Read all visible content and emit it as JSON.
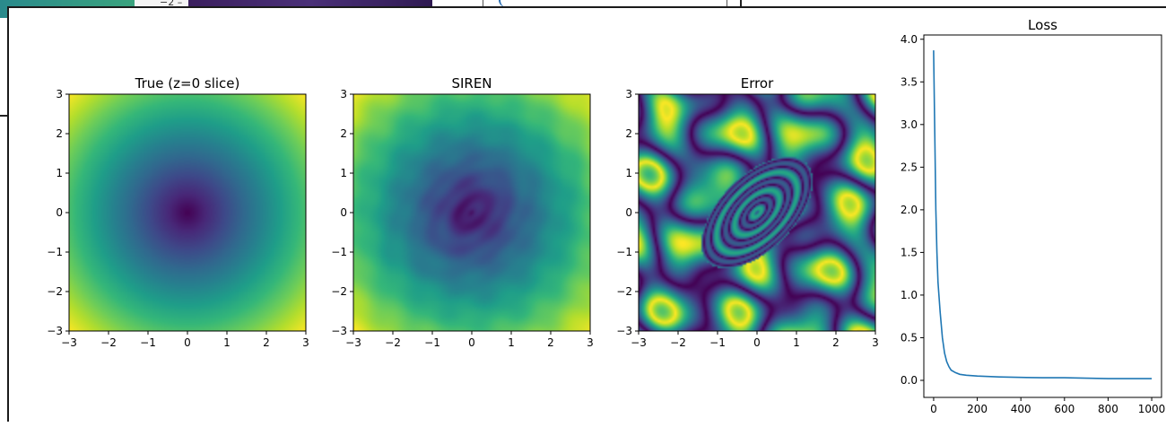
{
  "background": {
    "fragment_text": "−2 –"
  },
  "figure": {
    "panels": [
      {
        "title": "True (z=0 slice)",
        "field": "radial"
      },
      {
        "title": "SIREN",
        "field": "siren"
      },
      {
        "title": "Error",
        "field": "error"
      }
    ],
    "image_axis_ticks": [
      "−3",
      "−2",
      "−1",
      "0",
      "1",
      "2",
      "3"
    ]
  },
  "chart_data": [
    {
      "type": "heatmap",
      "title": "True (z=0 slice)",
      "xlabel": "",
      "ylabel": "",
      "xlim": [
        -3,
        3
      ],
      "ylim": [
        -3,
        3
      ],
      "xticks": [
        -3,
        -2,
        -1,
        0,
        1,
        2,
        3
      ],
      "yticks": [
        -3,
        -2,
        -1,
        0,
        1,
        2,
        3
      ],
      "colormap": "viridis",
      "description_of_values": "radial distance from origin, minimum (dark purple) at (0,0), maximum (yellow) at corners"
    },
    {
      "type": "heatmap",
      "title": "SIREN",
      "xlabel": "",
      "ylabel": "",
      "xlim": [
        -3,
        3
      ],
      "ylim": [
        -3,
        3
      ],
      "xticks": [
        -3,
        -2,
        -1,
        0,
        1,
        2,
        3
      ],
      "yticks": [
        -3,
        -2,
        -1,
        0,
        1,
        2,
        3
      ],
      "colormap": "viridis"
    },
    {
      "type": "heatmap",
      "title": "Error",
      "xlabel": "",
      "ylabel": "",
      "xlim": [
        -3,
        3
      ],
      "ylim": [
        -3,
        3
      ],
      "xticks": [
        -3,
        -2,
        -1,
        0,
        1,
        2,
        3
      ],
      "yticks": [
        -3,
        -2,
        -1,
        0,
        1,
        2,
        3
      ],
      "colormap": "viridis"
    },
    {
      "type": "line",
      "title": "Loss",
      "xlabel": "",
      "ylabel": "",
      "xlim": [
        -45,
        1045
      ],
      "ylim": [
        -0.2,
        4.05
      ],
      "xticks": [
        0,
        200,
        400,
        600,
        800,
        1000
      ],
      "yticks": [
        0.0,
        0.5,
        1.0,
        1.5,
        2.0,
        2.5,
        3.0,
        3.5,
        4.0
      ],
      "ytick_labels": [
        "0.0",
        "0.5",
        "1.0",
        "1.5",
        "2.0",
        "2.5",
        "3.0",
        "3.5",
        "4.0"
      ],
      "grid": false,
      "color": "#1f77b4",
      "x": [
        0,
        5,
        10,
        15,
        20,
        30,
        40,
        50,
        60,
        70,
        80,
        100,
        120,
        150,
        200,
        300,
        400,
        500,
        600,
        700,
        800,
        900,
        1000
      ],
      "y": [
        3.87,
        2.9,
        2.0,
        1.5,
        1.15,
        0.8,
        0.5,
        0.32,
        0.22,
        0.16,
        0.12,
        0.09,
        0.07,
        0.06,
        0.05,
        0.04,
        0.035,
        0.03,
        0.03,
        0.025,
        0.02,
        0.02,
        0.02
      ]
    }
  ]
}
